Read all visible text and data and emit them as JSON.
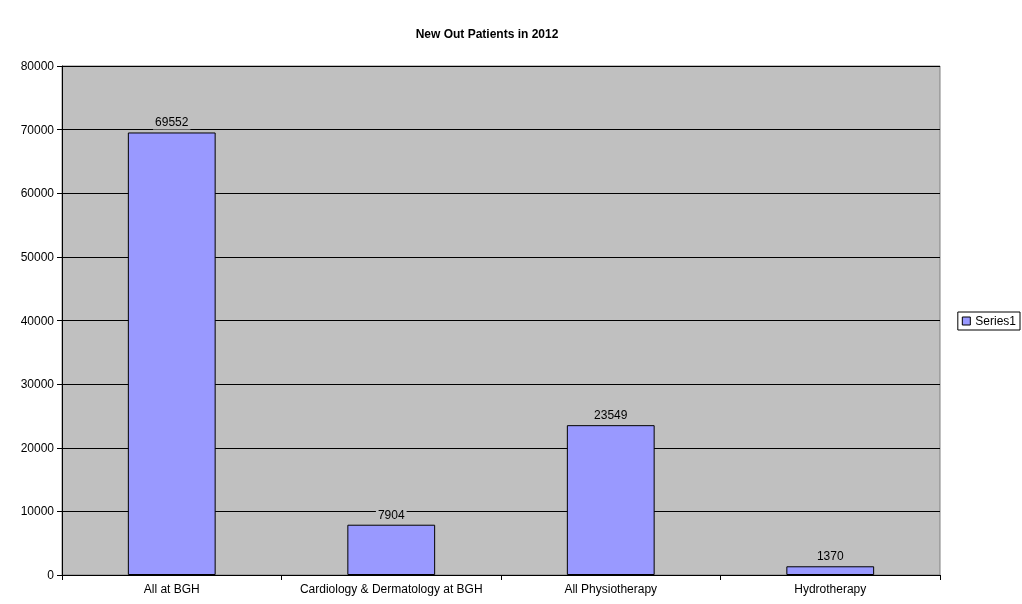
{
  "chart_data": {
    "type": "bar",
    "title": "New Out Patients in 2012",
    "categories": [
      "All at BGH",
      "Cardiology & Dermatology at BGH",
      "All Physiotherapy",
      "Hydrotherapy"
    ],
    "series": [
      {
        "name": "Series1",
        "color": "#9999ff",
        "values": [
          69552,
          7904,
          23549,
          1370
        ]
      }
    ],
    "ylim": [
      0,
      80000
    ],
    "yticks": [
      0,
      10000,
      20000,
      30000,
      40000,
      50000,
      60000,
      70000,
      80000
    ],
    "grid": "y",
    "legend": "right",
    "data_labels": true
  }
}
